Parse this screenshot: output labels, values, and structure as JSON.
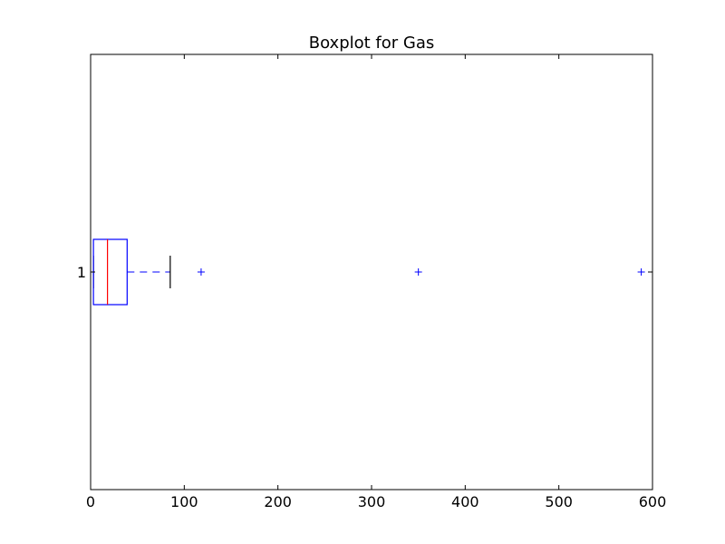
{
  "chart_data": {
    "type": "boxplot",
    "orientation": "horizontal",
    "title": "Boxplot for Gas",
    "xlabel": "",
    "ylabel": "",
    "xlim": [
      0,
      600
    ],
    "x_ticks": [
      0,
      100,
      200,
      300,
      400,
      500,
      600
    ],
    "grid": false,
    "categories": [
      "1"
    ],
    "boxes": [
      {
        "category": "1",
        "whisker_low": 3,
        "q1": 3,
        "median": 18,
        "q3": 39,
        "whisker_high": 85,
        "outliers": [
          118,
          350,
          588
        ]
      }
    ],
    "colors": {
      "box": "#0000ff",
      "median": "#ff0000",
      "whisker": "#0000ff",
      "cap": "#000000",
      "outlier": "#0000ff"
    }
  }
}
